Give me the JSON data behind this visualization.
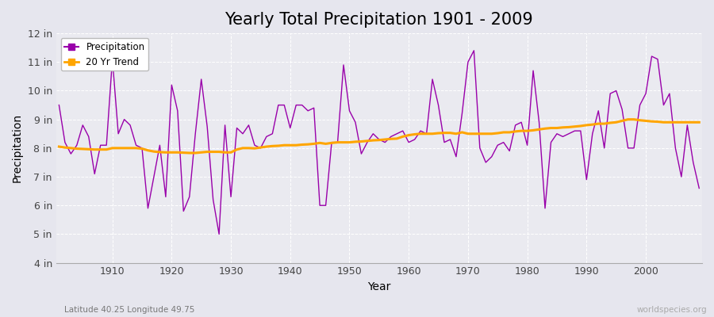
{
  "title": "Yearly Total Precipitation 1901 - 2009",
  "xlabel": "Year",
  "ylabel": "Precipitation",
  "subtitle": "Latitude 40.25 Longitude 49.75",
  "watermark": "worldspecies.org",
  "years": [
    1901,
    1902,
    1903,
    1904,
    1905,
    1906,
    1907,
    1908,
    1909,
    1910,
    1911,
    1912,
    1913,
    1914,
    1915,
    1916,
    1917,
    1918,
    1919,
    1920,
    1921,
    1922,
    1923,
    1924,
    1925,
    1926,
    1927,
    1928,
    1929,
    1930,
    1931,
    1932,
    1933,
    1934,
    1935,
    1936,
    1937,
    1938,
    1939,
    1940,
    1941,
    1942,
    1943,
    1944,
    1945,
    1946,
    1947,
    1948,
    1949,
    1950,
    1951,
    1952,
    1953,
    1954,
    1955,
    1956,
    1957,
    1958,
    1959,
    1960,
    1961,
    1962,
    1963,
    1964,
    1965,
    1966,
    1967,
    1968,
    1969,
    1970,
    1971,
    1972,
    1973,
    1974,
    1975,
    1976,
    1977,
    1978,
    1979,
    1980,
    1981,
    1982,
    1983,
    1984,
    1985,
    1986,
    1987,
    1988,
    1989,
    1990,
    1991,
    1992,
    1993,
    1994,
    1995,
    1996,
    1997,
    1998,
    1999,
    2000,
    2001,
    2002,
    2003,
    2004,
    2005,
    2006,
    2007,
    2008,
    2009
  ],
  "precipitation": [
    9.5,
    8.2,
    7.8,
    8.1,
    8.8,
    8.4,
    7.1,
    8.1,
    8.1,
    11.1,
    8.5,
    9.0,
    8.8,
    8.1,
    8.0,
    5.9,
    7.0,
    8.1,
    6.3,
    10.2,
    9.3,
    5.8,
    6.3,
    8.5,
    10.4,
    8.75,
    6.2,
    5.0,
    8.8,
    6.3,
    8.7,
    8.5,
    8.8,
    8.1,
    8.0,
    8.4,
    8.5,
    9.5,
    9.5,
    8.7,
    9.5,
    9.5,
    9.3,
    9.4,
    6.0,
    6.0,
    8.2,
    8.2,
    10.9,
    9.3,
    8.9,
    7.8,
    8.2,
    8.5,
    8.3,
    8.2,
    8.4,
    8.5,
    8.6,
    8.2,
    8.3,
    8.6,
    8.5,
    10.4,
    9.5,
    8.2,
    8.3,
    7.7,
    9.2,
    11.0,
    11.4,
    8.0,
    7.5,
    7.7,
    8.1,
    8.2,
    7.9,
    8.8,
    8.9,
    8.1,
    10.7,
    8.9,
    5.9,
    8.2,
    8.5,
    8.4,
    8.5,
    8.6,
    8.6,
    6.9,
    8.5,
    9.3,
    8.0,
    9.9,
    10.0,
    9.35,
    8.0,
    8.0,
    9.5,
    9.9,
    11.2,
    11.1,
    9.5,
    9.9,
    8.0,
    7.0,
    8.8,
    7.5,
    6.6
  ],
  "trend": [
    8.05,
    8.02,
    8.0,
    7.98,
    7.97,
    7.96,
    7.95,
    7.95,
    7.95,
    8.0,
    8.0,
    8.0,
    8.0,
    8.0,
    7.98,
    7.92,
    7.88,
    7.86,
    7.85,
    7.85,
    7.85,
    7.84,
    7.83,
    7.83,
    7.85,
    7.87,
    7.87,
    7.87,
    7.85,
    7.85,
    7.95,
    8.0,
    8.0,
    7.99,
    8.02,
    8.05,
    8.07,
    8.08,
    8.1,
    8.1,
    8.1,
    8.12,
    8.13,
    8.15,
    8.18,
    8.15,
    8.18,
    8.2,
    8.2,
    8.2,
    8.22,
    8.23,
    8.25,
    8.27,
    8.28,
    8.3,
    8.32,
    8.33,
    8.4,
    8.45,
    8.48,
    8.5,
    8.5,
    8.5,
    8.52,
    8.53,
    8.53,
    8.5,
    8.55,
    8.5,
    8.5,
    8.5,
    8.5,
    8.5,
    8.52,
    8.55,
    8.55,
    8.58,
    8.6,
    8.6,
    8.62,
    8.65,
    8.68,
    8.7,
    8.7,
    8.72,
    8.73,
    8.75,
    8.77,
    8.8,
    8.82,
    8.85,
    8.85,
    8.88,
    8.9,
    8.95,
    9.0,
    9.0,
    8.97,
    8.95,
    8.93,
    8.92,
    8.9,
    8.9,
    8.9,
    8.9,
    8.9,
    8.9,
    8.9
  ],
  "precip_color": "#9900aa",
  "trend_color": "#FFA500",
  "bg_color": "#e6e6ee",
  "plot_bg_color": "#eaeaf0",
  "grid_color": "#ffffff",
  "ylim": [
    4,
    12
  ],
  "yticks": [
    4,
    5,
    6,
    7,
    8,
    9,
    10,
    11,
    12
  ],
  "ytick_labels": [
    "4 in",
    "5 in",
    "6 in",
    "7 in",
    "8 in",
    "9 in",
    "10 in",
    "11 in",
    "12 in"
  ],
  "xticks": [
    1910,
    1920,
    1930,
    1940,
    1950,
    1960,
    1970,
    1980,
    1990,
    2000
  ],
  "title_fontsize": 15,
  "axis_fontsize": 10,
  "tick_fontsize": 9
}
